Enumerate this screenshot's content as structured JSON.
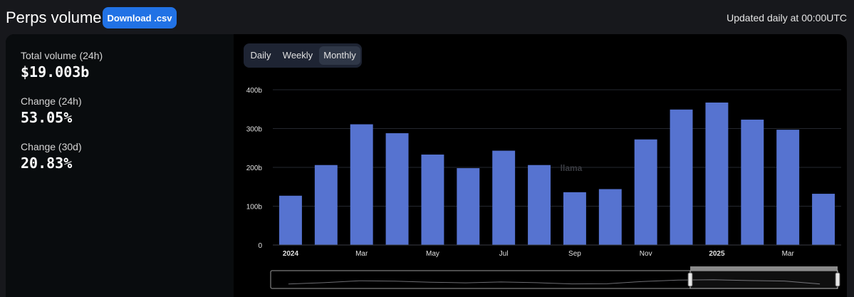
{
  "header": {
    "title": "Perps volume",
    "download_label": "Download .csv",
    "updated_text": "Updated daily at 00:00UTC"
  },
  "stats": [
    {
      "label": "Total volume (24h)",
      "value": "$19.003b"
    },
    {
      "label": "Change (24h)",
      "value": "53.05%"
    },
    {
      "label": "Change (30d)",
      "value": "20.83%"
    }
  ],
  "tabs": [
    {
      "label": "Daily",
      "active": false
    },
    {
      "label": "Weekly",
      "active": false
    },
    {
      "label": "Monthly",
      "active": true
    }
  ],
  "watermark": "llama",
  "chart_data": {
    "type": "bar",
    "bar_color": "#5673d0",
    "categories": [
      "2024-01",
      "2024-02",
      "2024-03",
      "2024-04",
      "2024-05",
      "2024-06",
      "2024-07",
      "2024-08",
      "2024-09",
      "2024-10",
      "2024-11",
      "2024-12",
      "2025-01",
      "2025-02",
      "2025-03",
      "2025-04"
    ],
    "values": [
      127,
      206,
      311,
      288,
      233,
      198,
      243,
      206,
      136,
      144,
      272,
      349,
      367,
      323,
      297,
      132
    ],
    "value_unit": "b",
    "ylim": [
      0,
      400
    ],
    "y_ticks": [
      "0",
      "100b",
      "200b",
      "300b",
      "400b"
    ],
    "x_tick_labels": [
      {
        "index": 0,
        "label": "2024",
        "bold": true
      },
      {
        "index": 2,
        "label": "Mar",
        "bold": false
      },
      {
        "index": 4,
        "label": "May",
        "bold": false
      },
      {
        "index": 6,
        "label": "Jul",
        "bold": false
      },
      {
        "index": 8,
        "label": "Sep",
        "bold": false
      },
      {
        "index": 10,
        "label": "Nov",
        "bold": false
      },
      {
        "index": 12,
        "label": "2025",
        "bold": true
      },
      {
        "index": 14,
        "label": "Mar",
        "bold": false
      }
    ],
    "grid": true,
    "zoom_range": [
      0.74,
      1.0
    ]
  }
}
